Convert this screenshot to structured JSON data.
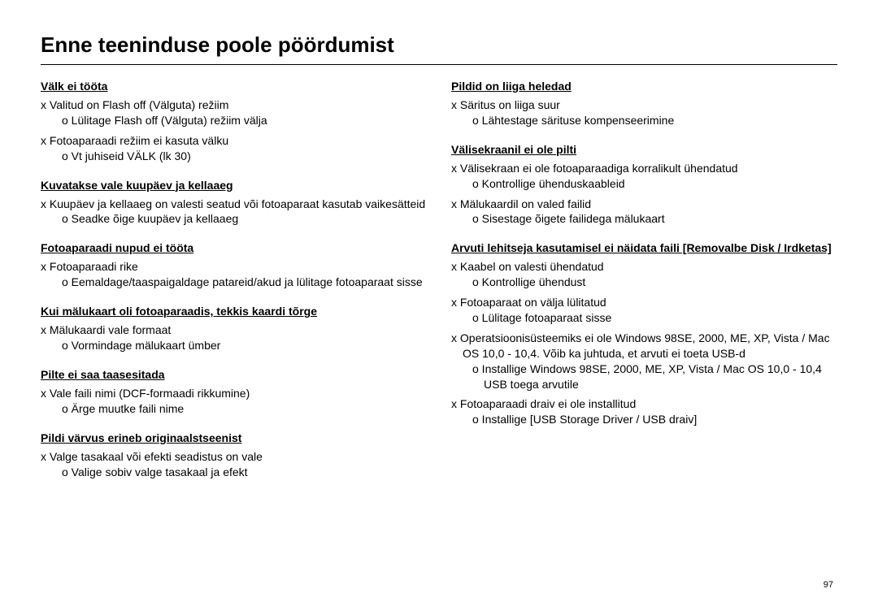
{
  "title": "Enne teeninduse poole pöördumist",
  "pageNumber": "97",
  "left": [
    {
      "heading": "Välk ei tööta",
      "items": [
        {
          "x": "Valitud on Flash off (Välguta) režiim",
          "o": [
            "Lülitage Flash off (Välguta) režiim välja"
          ]
        },
        {
          "x": "Fotoaparaadi režiim ei kasuta välku",
          "o": [
            "Vt juhiseid VÄLK (lk 30)"
          ]
        }
      ]
    },
    {
      "heading": "Kuvatakse vale kuupäev ja kellaaeg",
      "items": [
        {
          "x": "Kuupäev ja kellaaeg on valesti seatud või fotoaparaat kasutab vaikesätteid",
          "o": [
            "Seadke õige kuupäev ja kellaaeg"
          ]
        }
      ]
    },
    {
      "heading": "Fotoaparaadi nupud ei tööta",
      "items": [
        {
          "x": "Fotoaparaadi rike",
          "o": [
            "Eemaldage/taaspaigaldage patareid/akud ja lülitage fotoaparaat sisse"
          ]
        }
      ]
    },
    {
      "heading": "Kui mälukaart oli fotoaparaadis, tekkis kaardi tõrge",
      "items": [
        {
          "x": "Mälukaardi vale formaat",
          "o": [
            "Vormindage mälukaart ümber"
          ]
        }
      ]
    },
    {
      "heading": "Pilte ei saa taasesitada",
      "items": [
        {
          "x": "Vale faili nimi (DCF-formaadi rikkumine)",
          "o": [
            "Ärge muutke faili nime"
          ]
        }
      ]
    },
    {
      "heading": "Pildi värvus erineb originaalstseenist",
      "items": [
        {
          "x": "Valge tasakaal või efekti seadistus on vale",
          "o": [
            "Valige sobiv valge tasakaal ja efekt"
          ]
        }
      ]
    }
  ],
  "right": [
    {
      "heading": "Pildid on liiga heledad",
      "items": [
        {
          "x": "Säritus on liiga suur",
          "o": [
            "Lähtestage särituse kompenseerimine"
          ]
        }
      ]
    },
    {
      "heading": "Välisekraanil ei ole pilti",
      "items": [
        {
          "x": "Välisekraan ei ole fotoaparaadiga korralikult ühendatud",
          "o": [
            "Kontrollige ühenduskaableid"
          ]
        },
        {
          "x": "Mälukaardil on valed failid",
          "o": [
            "Sisestage õigete failidega mälukaart"
          ]
        }
      ]
    },
    {
      "heading": "Arvuti lehitseja kasutamisel ei näidata faili [Removalbe Disk / Irdketas]",
      "items": [
        {
          "x": "Kaabel on valesti ühendatud",
          "o": [
            "Kontrollige ühendust"
          ]
        },
        {
          "x": "Fotoaparaat on välja lülitatud",
          "o": [
            "Lülitage fotoaparaat sisse"
          ]
        },
        {
          "x": "Operatsioonisüsteemiks ei ole Windows 98SE, 2000, ME, XP, Vista / Mac OS 10,0 - 10,4. Võib ka juhtuda, et arvuti ei toeta USB-d",
          "o": [
            "Installige Windows 98SE, 2000, ME, XP, Vista / Mac OS 10,0 - 10,4 USB toega arvutile"
          ]
        },
        {
          "x": "Fotoaparaadi draiv ei ole installitud",
          "o": [
            "Installige [USB Storage Driver / USB draiv]"
          ]
        }
      ]
    }
  ]
}
